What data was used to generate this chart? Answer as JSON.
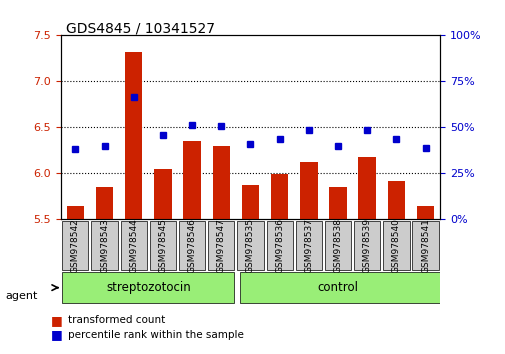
{
  "title": "GDS4845 / 10341527",
  "samples": [
    "GSM978542",
    "GSM978543",
    "GSM978544",
    "GSM978545",
    "GSM978546",
    "GSM978547",
    "GSM978535",
    "GSM978536",
    "GSM978537",
    "GSM978538",
    "GSM978539",
    "GSM978540",
    "GSM978541"
  ],
  "red_values": [
    5.65,
    5.85,
    7.32,
    6.05,
    6.35,
    6.3,
    5.87,
    5.99,
    6.12,
    5.85,
    6.18,
    5.92,
    5.65
  ],
  "blue_values": [
    6.27,
    6.3,
    6.83,
    6.42,
    6.53,
    6.52,
    6.32,
    6.37,
    6.47,
    6.3,
    6.47,
    6.37,
    6.28
  ],
  "group1_label": "streptozotocin",
  "group2_label": "control",
  "group1_count": 6,
  "group2_count": 7,
  "ylim_left": [
    5.5,
    7.5
  ],
  "ylim_right": [
    0,
    100
  ],
  "yticks_left": [
    5.5,
    6.0,
    6.5,
    7.0,
    7.5
  ],
  "yticks_right": [
    0,
    25,
    50,
    75,
    100
  ],
  "red_color": "#CC2200",
  "blue_color": "#0000CC",
  "bar_width": 0.6,
  "agent_label": "agent",
  "legend_red": "transformed count",
  "legend_blue": "percentile rank within the sample",
  "grid_color": "#000000",
  "bg_color": "#FFFFFF",
  "xlabel_bg": "#CCCCCC",
  "group_bg": "#99EE77"
}
